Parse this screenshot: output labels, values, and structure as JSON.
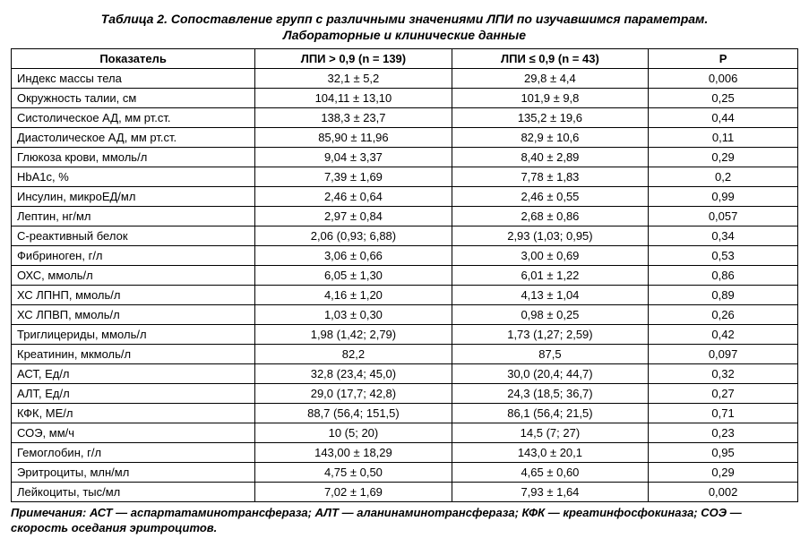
{
  "title_line1": "Таблица 2. Сопоставление групп с различными значениями ЛПИ по изучавшимся параметрам.",
  "title_line2": "Лабораторные и клинические данные",
  "headers": {
    "param": "Показатель",
    "col1": "ЛПИ > 0,9 (n = 139)",
    "col2": "ЛПИ ≤ 0,9 (n = 43)",
    "col3": "P"
  },
  "rows": [
    {
      "p": "Индекс массы тела",
      "a": "32,1 ± 5,2",
      "b": "29,8 ± 4,4",
      "c": "0,006"
    },
    {
      "p": "Окружность талии, см",
      "a": "104,11 ± 13,10",
      "b": "101,9 ± 9,8",
      "c": "0,25"
    },
    {
      "p": "Систолическое АД, мм рт.ст.",
      "a": "138,3 ± 23,7",
      "b": "135,2 ± 19,6",
      "c": "0,44"
    },
    {
      "p": "Диастолическое АД, мм рт.ст.",
      "a": "85,90 ± 11,96",
      "b": "82,9 ± 10,6",
      "c": "0,11"
    },
    {
      "p": "Глюкоза крови, ммоль/л",
      "a": "9,04 ± 3,37",
      "b": "8,40 ± 2,89",
      "c": "0,29"
    },
    {
      "p": "HbA1c, %",
      "a": "7,39 ± 1,69",
      "b": "7,78 ± 1,83",
      "c": "0,2"
    },
    {
      "p": "Инсулин, микроЕД/мл",
      "a": "2,46 ± 0,64",
      "b": "2,46 ± 0,55",
      "c": "0,99"
    },
    {
      "p": "Лептин, нг/мл",
      "a": "2,97 ± 0,84",
      "b": "2,68 ± 0,86",
      "c": "0,057"
    },
    {
      "p": "С-реактивный белок",
      "a": "2,06 (0,93; 6,88)",
      "b": "2,93 (1,03; 0,95)",
      "c": "0,34"
    },
    {
      "p": "Фибриноген, г/л",
      "a": "3,06 ± 0,66",
      "b": "3,00 ± 0,69",
      "c": "0,53"
    },
    {
      "p": "ОХС, ммоль/л",
      "a": "6,05 ± 1,30",
      "b": "6,01 ± 1,22",
      "c": "0,86"
    },
    {
      "p": "ХС ЛПНП, ммоль/л",
      "a": "4,16 ± 1,20",
      "b": "4,13 ± 1,04",
      "c": "0,89"
    },
    {
      "p": "ХС ЛПВП, ммоль/л",
      "a": "1,03 ± 0,30",
      "b": "0,98 ± 0,25",
      "c": "0,26"
    },
    {
      "p": "Триглицериды, ммоль/л",
      "a": "1,98 (1,42; 2,79)",
      "b": "1,73 (1,27; 2,59)",
      "c": "0,42"
    },
    {
      "p": "Креатинин, мкмоль/л",
      "a": "82,2",
      "b": "87,5",
      "c": "0,097"
    },
    {
      "p": "АСТ, Ед/л",
      "a": "32,8 (23,4; 45,0)",
      "b": "30,0 (20,4; 44,7)",
      "c": "0,32"
    },
    {
      "p": "АЛТ, Ед/л",
      "a": "29,0 (17,7; 42,8)",
      "b": "24,3 (18,5; 36,7)",
      "c": "0,27"
    },
    {
      "p": "КФК, МЕ/л",
      "a": "88,7 (56,4; 151,5)",
      "b": "86,1 (56,4; 21,5)",
      "c": "0,71"
    },
    {
      "p": "СОЭ, мм/ч",
      "a": "10 (5; 20)",
      "b": "14,5 (7; 27)",
      "c": "0,23"
    },
    {
      "p": "Гемоглобин, г/л",
      "a": "143,00 ± 18,29",
      "b": "143,0 ± 20,1",
      "c": "0,95"
    },
    {
      "p": "Эритроциты, млн/мл",
      "a": "4,75 ± 0,50",
      "b": "4,65 ± 0,60",
      "c": "0,29"
    },
    {
      "p": "Лейкоциты, тыс/мл",
      "a": "7,02 ± 1,69",
      "b": "7,93 ± 1,64",
      "c": "0,002"
    }
  ],
  "footnote": "Примечания: АСТ — аспартатаминотрансфераза; АЛТ — аланинаминотрансфераза; КФК — креатинфосфокиназа; СОЭ — скорость оседания эритроцитов."
}
